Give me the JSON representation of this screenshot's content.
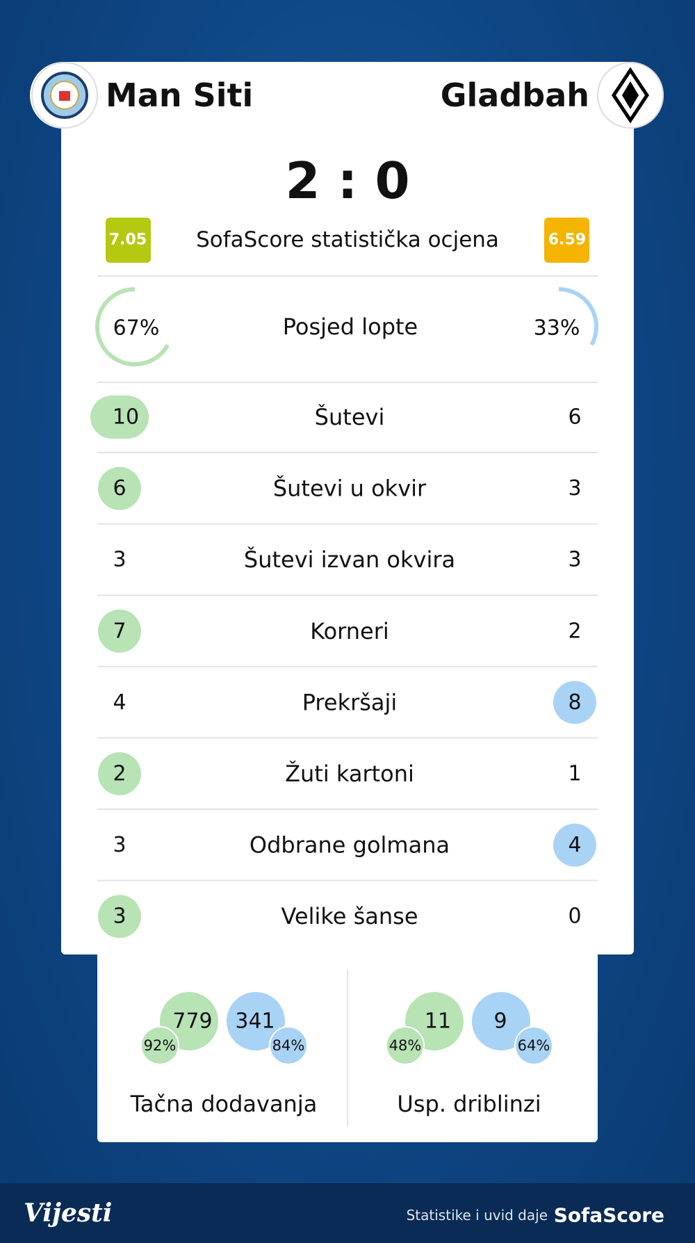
{
  "header": {
    "home_team": "Man Siti",
    "away_team": "Gladbah",
    "score": "2 : 0"
  },
  "rating": {
    "home": 7.05,
    "label": "SofaScore statistička ocjena",
    "away": 6.59
  },
  "possession": {
    "label": "Posjed lopte",
    "home": {
      "value": 67,
      "label": "67%"
    },
    "away": {
      "value": 33,
      "label": "33%"
    }
  },
  "stats": [
    {
      "label": "Šutevi",
      "home": 10,
      "away": 6,
      "leader": "home"
    },
    {
      "label": "Šutevi u okvir",
      "home": 6,
      "away": 3,
      "leader": "home"
    },
    {
      "label": "Šutevi izvan okvira",
      "home": 3,
      "away": 3,
      "leader": "none"
    },
    {
      "label": "Korneri",
      "home": 7,
      "away": 2,
      "leader": "home"
    },
    {
      "label": "Prekršaji",
      "home": 4,
      "away": 8,
      "leader": "away"
    },
    {
      "label": "Žuti kartoni",
      "home": 2,
      "away": 1,
      "leader": "home"
    },
    {
      "label": "Odbrane golmana",
      "home": 3,
      "away": 4,
      "leader": "away"
    },
    {
      "label": "Velike šanse",
      "home": 3,
      "away": 0,
      "leader": "home"
    }
  ],
  "bottom": [
    {
      "label": "Tačna dodavanja",
      "home": 779,
      "home_pct": "92%",
      "away": 341,
      "away_pct": "84%"
    },
    {
      "label": "Usp. driblinzi",
      "home": 11,
      "home_pct": "48%",
      "away": 9,
      "away_pct": "64%"
    }
  ],
  "footer": {
    "brand": "Vijesti",
    "credit": "Statistike i uvid daje",
    "provider": "SofaScore"
  }
}
